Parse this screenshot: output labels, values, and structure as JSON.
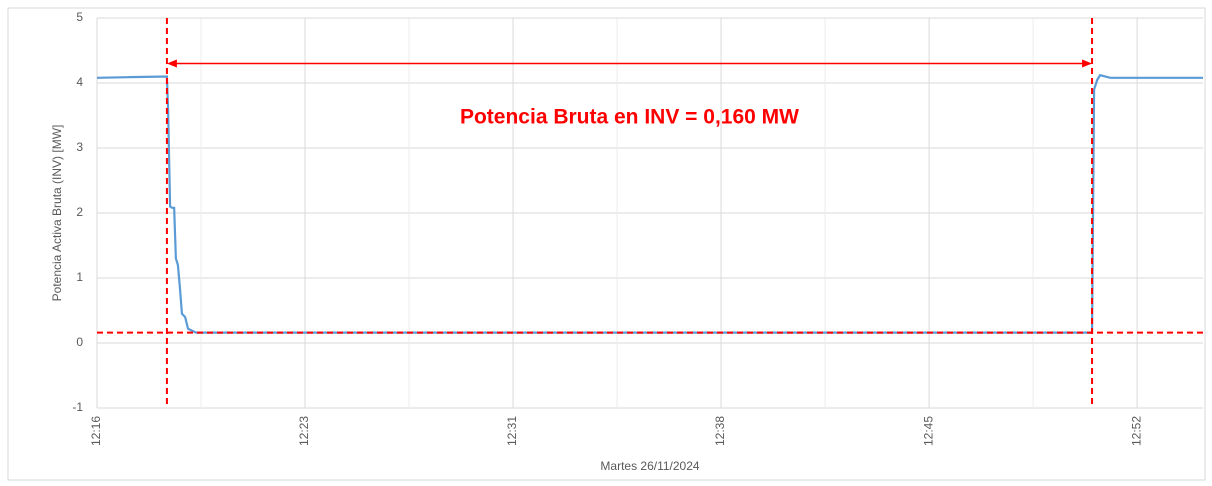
{
  "chart_data": {
    "type": "line",
    "annotation": "Potencia Bruta en INV = 0,160 MW",
    "x_label": "Martes 26/11/2024",
    "y_label": "Potencia Activa Bruta (INV) [MW]",
    "x": [
      736,
      737.14,
      738.42,
      738.46,
      738.53,
      738.6,
      738.67,
      738.73,
      738.8,
      738.87,
      738.94,
      739.05,
      739.15,
      739.43,
      770.44,
      770.51,
      770.62,
      770.72,
      771.07,
      774.28
    ],
    "series": [
      {
        "color": "#5b9bd5",
        "values": [
          4.08,
          4.09,
          4.1,
          3.6,
          2.1,
          2.08,
          2.08,
          1.3,
          1.2,
          0.85,
          0.45,
          0.4,
          0.22,
          0.16,
          0.16,
          3.9,
          4.05,
          4.12,
          4.08,
          4.08
        ]
      }
    ],
    "reference_lines": {
      "color": "#ff0000",
      "x": [
        738.42,
        770.44
      ],
      "y": 0.16,
      "arrow_y": 4.3
    },
    "xlim": [
      736,
      774.28
    ],
    "xticks": [
      {
        "value": 736,
        "label": "12:16"
      },
      {
        "value": 743.2,
        "label": "12:23"
      },
      {
        "value": 750.4,
        "label": "12:31"
      },
      {
        "value": 757.6,
        "label": "12:38"
      },
      {
        "value": 764.8,
        "label": "12:45"
      },
      {
        "value": 772,
        "label": "12:52"
      }
    ],
    "ylim": [
      -1,
      5
    ],
    "yticks": [
      -1,
      0,
      1,
      2,
      3,
      4,
      5
    ],
    "grid": true
  }
}
